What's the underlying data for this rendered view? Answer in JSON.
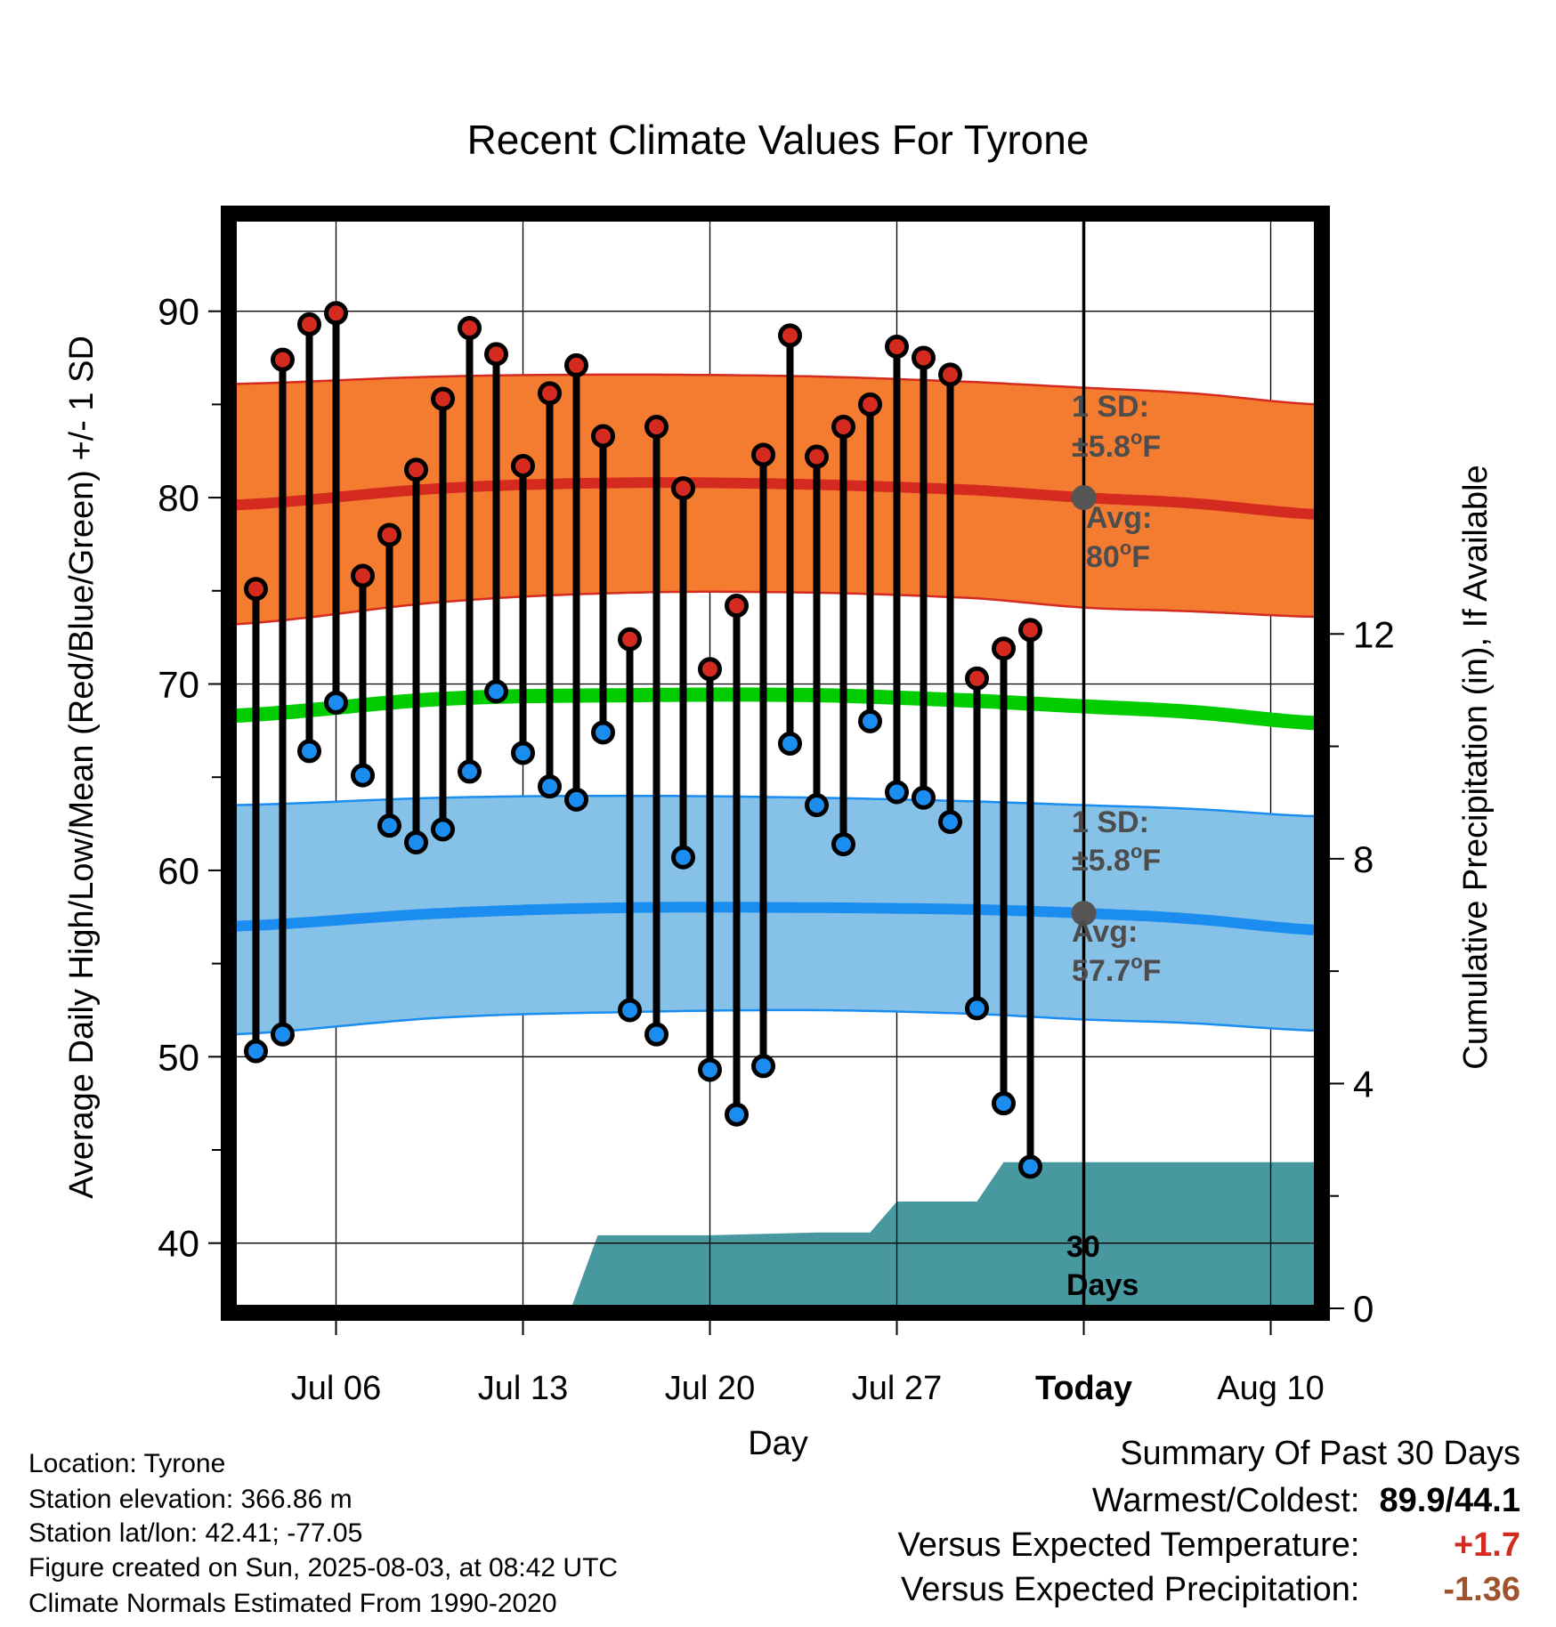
{
  "chart_data": {
    "type": "line",
    "title": "Recent Climate Values For Tyrone",
    "xlabel": "Day",
    "ylabel": "Average Daily High/Low/Mean (Red/Blue/Green) +/- 1 SD",
    "y2label": "Cumulative Precipitation (in), If Available",
    "ylim": [
      36.5,
      95.0
    ],
    "y2lim": [
      0,
      19.4
    ],
    "yticks": [
      40,
      50,
      60,
      70,
      80,
      90
    ],
    "y2ticks": [
      0,
      4,
      8,
      12
    ],
    "xticks": [
      {
        "day": 6,
        "label": "Jul 06"
      },
      {
        "day": 13,
        "label": "Jul 13"
      },
      {
        "day": 20,
        "label": "Jul 20"
      },
      {
        "day": 27,
        "label": "Jul 27"
      },
      {
        "day": 34,
        "label": "Today"
      },
      {
        "day": 41,
        "label": "Aug 10"
      }
    ],
    "xlim": [
      2.15,
      42.75
    ],
    "today_day": 34,
    "grid": true,
    "days": [
      3,
      4,
      5,
      6,
      7,
      8,
      9,
      10,
      11,
      12,
      13,
      14,
      15,
      16,
      17,
      18,
      19,
      20,
      21,
      22,
      23,
      24,
      25,
      26,
      27,
      28,
      29,
      30,
      31,
      32,
      33
    ],
    "highs": [
      75.1,
      87.4,
      89.3,
      89.9,
      75.8,
      78.0,
      81.5,
      85.3,
      89.1,
      87.7,
      81.7,
      85.6,
      87.1,
      83.3,
      72.4,
      83.8,
      80.5,
      70.8,
      74.2,
      82.3,
      88.7,
      82.2,
      83.8,
      85.0,
      88.1,
      87.5,
      86.6,
      70.3,
      71.9,
      72.9,
      null
    ],
    "lows": [
      50.3,
      51.2,
      66.4,
      69.0,
      65.1,
      62.4,
      61.5,
      62.2,
      65.3,
      69.6,
      66.3,
      64.5,
      63.8,
      67.4,
      52.5,
      51.2,
      60.7,
      49.3,
      46.9,
      49.5,
      66.8,
      63.5,
      61.4,
      68.0,
      64.2,
      63.9,
      62.6,
      52.6,
      47.5,
      44.1,
      null
    ],
    "normal_high": {
      "x": [
        2.15,
        10,
        17,
        24,
        30,
        34,
        38,
        42.75
      ],
      "avg": [
        79.6,
        80.5,
        80.8,
        80.7,
        80.4,
        80.0,
        79.7,
        79.1
      ],
      "upper": [
        86.1,
        86.5,
        86.6,
        86.5,
        86.2,
        85.9,
        85.6,
        85.0
      ],
      "lower": [
        73.2,
        74.4,
        74.9,
        74.9,
        74.6,
        74.1,
        73.9,
        73.6
      ]
    },
    "normal_low": {
      "x": [
        2.15,
        10,
        17,
        24,
        30,
        34,
        38,
        42.75
      ],
      "avg": [
        57.0,
        57.7,
        58.0,
        58.0,
        57.9,
        57.7,
        57.4,
        56.8
      ],
      "upper": [
        63.5,
        63.9,
        64.0,
        63.9,
        63.7,
        63.5,
        63.3,
        62.9
      ],
      "lower": [
        51.2,
        52.1,
        52.4,
        52.5,
        52.3,
        52.0,
        51.8,
        51.4
      ]
    },
    "normal_mean": {
      "x": [
        2.15,
        10,
        17,
        24,
        30,
        34,
        38,
        42.75
      ],
      "values": [
        68.3,
        69.2,
        69.4,
        69.4,
        69.1,
        68.8,
        68.5,
        67.9
      ]
    },
    "precip": {
      "x": [
        2.15,
        14.8,
        15.8,
        20,
        24,
        26.0,
        27.0,
        30,
        31.0,
        33,
        42.75
      ],
      "values": [
        0,
        0,
        1.3,
        1.3,
        1.35,
        1.35,
        1.9,
        1.9,
        2.6,
        2.6,
        2.6
      ]
    },
    "annotations": {
      "high_sd_label": "1 SD:",
      "high_sd_value": "±5.8",
      "high_avg_label": "Avg:",
      "high_avg_value": "80",
      "low_sd_label": "1 SD:",
      "low_sd_value": "±5.8",
      "low_avg_label": "Avg:",
      "low_avg_value": "57.7",
      "unit": "F",
      "degree": "o",
      "days_line1": "30",
      "days_line2": "Days"
    },
    "colors": {
      "high_band": "#f47c30",
      "high_line": "#d42a20",
      "low_band": "#86c1e8",
      "low_line": "#1b8cf0",
      "mean_line": "#00cc00",
      "precip": "#4898a0",
      "high_dot": "#d42a20",
      "low_dot": "#1b8cf0",
      "annotation": "#4d4d4d"
    }
  },
  "info": {
    "location": "Location: Tyrone",
    "elevation": "Station elevation: 366.86 m",
    "latlon": "Station lat/lon: 42.41; -77.05",
    "created": "Figure created on Sun, 2025-08-03, at 08:42 UTC",
    "normals": "Climate Normals Estimated From 1990-2020"
  },
  "summary": {
    "title": "Summary Of Past 30 Days",
    "warm_cold_label": "Warmest/Coldest:",
    "warm_cold_value": "89.9/44.1",
    "temp_label": "Versus Expected Temperature:",
    "temp_value": "+1.7",
    "temp_color": "#d42a20",
    "precip_label": "Versus Expected Precipitation:",
    "precip_value": "-1.36",
    "precip_color": "#a0522d"
  }
}
